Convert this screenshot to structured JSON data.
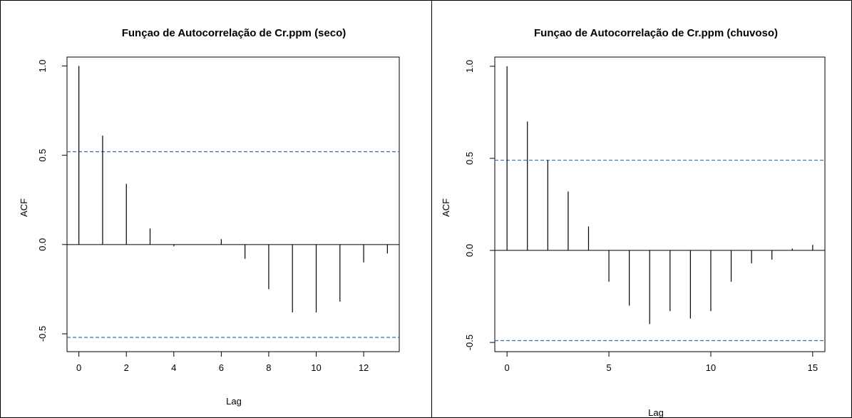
{
  "chart_data": [
    {
      "type": "bar",
      "title": "Funçao de Autocorrelação de Cr.ppm (seco)",
      "xlabel": "Lag",
      "ylabel": "ACF",
      "xlim": [
        -0.5,
        13.5
      ],
      "ylim": [
        -0.6,
        1.05
      ],
      "xticks": [
        0,
        2,
        4,
        6,
        8,
        10,
        12
      ],
      "yticks": [
        -0.5,
        0.0,
        0.5,
        1.0
      ],
      "ytick_labels": [
        "-0.5",
        "0.0",
        "0.5",
        "1.0"
      ],
      "lags": [
        0,
        1,
        2,
        3,
        4,
        5,
        6,
        7,
        8,
        9,
        10,
        11,
        12,
        13
      ],
      "acf": [
        1.0,
        0.61,
        0.34,
        0.09,
        -0.01,
        0.0,
        0.03,
        -0.08,
        -0.25,
        -0.38,
        -0.38,
        -0.32,
        -0.1,
        -0.05
      ],
      "confidence_bound": 0.52,
      "bound_color": "#3a6fb5",
      "grid": false
    },
    {
      "type": "bar",
      "title": "Funçao de Autocorrelação de Cr.ppm (chuvoso)",
      "xlabel": "Lag",
      "ylabel": "ACF",
      "xlim": [
        -0.6,
        15.6
      ],
      "ylim": [
        -0.55,
        1.05
      ],
      "xticks": [
        0,
        5,
        10,
        15
      ],
      "yticks": [
        -0.5,
        0.0,
        0.5,
        1.0
      ],
      "ytick_labels": [
        "-0.5",
        "0.0",
        "0.5",
        "1.0"
      ],
      "lags": [
        0,
        1,
        2,
        3,
        4,
        5,
        6,
        7,
        8,
        9,
        10,
        11,
        12,
        13,
        14,
        15
      ],
      "acf": [
        1.0,
        0.7,
        0.49,
        0.32,
        0.13,
        -0.17,
        -0.3,
        -0.4,
        -0.33,
        -0.37,
        -0.33,
        -0.17,
        -0.07,
        -0.05,
        0.01,
        0.03
      ],
      "confidence_bound": 0.49,
      "bound_color": "#3a6fb5",
      "grid": false
    }
  ]
}
